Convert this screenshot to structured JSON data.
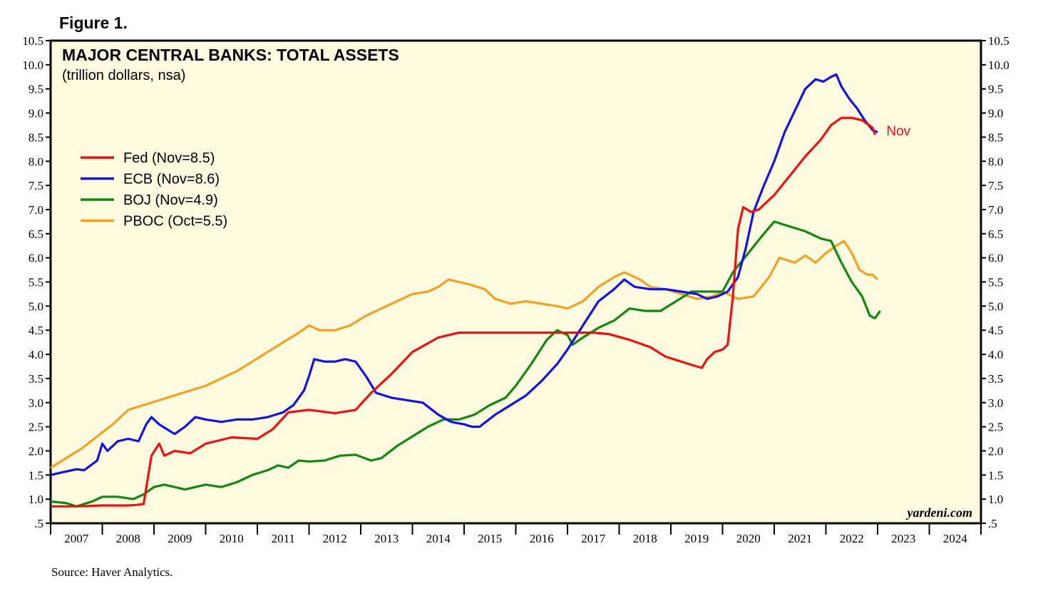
{
  "figure_label": "Figure 1.",
  "source": "Source: Haver Analytics.",
  "watermark": "yardeni.com",
  "colors": {
    "fed": "#ee1111",
    "ecb": "#1111ee",
    "boj": "#118811",
    "pboc": "#f5a020",
    "plot_bg": "#fefbe0"
  },
  "chart_data": {
    "type": "line",
    "title": "MAJOR CENTRAL BANKS: TOTAL ASSETS",
    "subtitle": "(trillion dollars, nsa)",
    "xlabel": "",
    "ylabel": "",
    "x_categories": [
      "2007",
      "2008",
      "2009",
      "2010",
      "2011",
      "2012",
      "2013",
      "2014",
      "2015",
      "2016",
      "2017",
      "2018",
      "2019",
      "2020",
      "2021",
      "2022",
      "2023",
      "2024"
    ],
    "xlim": [
      2007,
      2025
    ],
    "ylim": [
      0.5,
      10.5
    ],
    "y_ticks": [
      ".5",
      "1.0",
      "1.5",
      "2.0",
      "2.5",
      "3.0",
      "3.5",
      "4.0",
      "4.5",
      "5.0",
      "5.5",
      "6.0",
      "6.5",
      "7.0",
      "7.5",
      "8.0",
      "8.5",
      "9.0",
      "9.5",
      "10.0",
      "10.5"
    ],
    "grid": false,
    "legend_position": "left",
    "annotation": {
      "text": "Nov",
      "series": "Fed"
    },
    "series": [
      {
        "name": "Fed (Nov=8.5)",
        "key": "fed",
        "points": [
          [
            2007.0,
            0.85
          ],
          [
            2007.5,
            0.85
          ],
          [
            2008.0,
            0.87
          ],
          [
            2008.5,
            0.87
          ],
          [
            2008.65,
            0.88
          ],
          [
            2008.8,
            0.9
          ],
          [
            2008.95,
            1.9
          ],
          [
            2009.1,
            2.15
          ],
          [
            2009.2,
            1.9
          ],
          [
            2009.4,
            2.0
          ],
          [
            2009.7,
            1.95
          ],
          [
            2010.0,
            2.15
          ],
          [
            2010.5,
            2.28
          ],
          [
            2011.0,
            2.25
          ],
          [
            2011.3,
            2.45
          ],
          [
            2011.6,
            2.8
          ],
          [
            2012.0,
            2.85
          ],
          [
            2012.5,
            2.78
          ],
          [
            2012.9,
            2.85
          ],
          [
            2013.2,
            3.2
          ],
          [
            2013.6,
            3.6
          ],
          [
            2014.0,
            4.05
          ],
          [
            2014.5,
            4.35
          ],
          [
            2014.9,
            4.45
          ],
          [
            2015.5,
            4.45
          ],
          [
            2016.0,
            4.45
          ],
          [
            2016.5,
            4.45
          ],
          [
            2017.0,
            4.45
          ],
          [
            2017.5,
            4.45
          ],
          [
            2017.8,
            4.42
          ],
          [
            2018.2,
            4.3
          ],
          [
            2018.6,
            4.15
          ],
          [
            2018.9,
            3.95
          ],
          [
            2019.2,
            3.85
          ],
          [
            2019.5,
            3.75
          ],
          [
            2019.6,
            3.72
          ],
          [
            2019.7,
            3.9
          ],
          [
            2019.85,
            4.05
          ],
          [
            2020.0,
            4.1
          ],
          [
            2020.1,
            4.2
          ],
          [
            2020.2,
            5.2
          ],
          [
            2020.3,
            6.6
          ],
          [
            2020.4,
            7.05
          ],
          [
            2020.55,
            6.95
          ],
          [
            2020.7,
            7.0
          ],
          [
            2021.0,
            7.3
          ],
          [
            2021.3,
            7.7
          ],
          [
            2021.6,
            8.1
          ],
          [
            2021.9,
            8.45
          ],
          [
            2022.1,
            8.75
          ],
          [
            2022.3,
            8.9
          ],
          [
            2022.5,
            8.9
          ],
          [
            2022.7,
            8.85
          ],
          [
            2022.9,
            8.7
          ],
          [
            2022.95,
            8.55
          ]
        ]
      },
      {
        "name": "ECB (Nov=8.6)",
        "key": "ecb",
        "points": [
          [
            2007.0,
            1.5
          ],
          [
            2007.2,
            1.55
          ],
          [
            2007.5,
            1.62
          ],
          [
            2007.65,
            1.6
          ],
          [
            2007.9,
            1.8
          ],
          [
            2008.0,
            2.15
          ],
          [
            2008.1,
            2.0
          ],
          [
            2008.3,
            2.2
          ],
          [
            2008.5,
            2.25
          ],
          [
            2008.7,
            2.2
          ],
          [
            2008.85,
            2.55
          ],
          [
            2008.95,
            2.7
          ],
          [
            2009.1,
            2.55
          ],
          [
            2009.25,
            2.45
          ],
          [
            2009.4,
            2.35
          ],
          [
            2009.6,
            2.5
          ],
          [
            2009.8,
            2.7
          ],
          [
            2010.0,
            2.65
          ],
          [
            2010.3,
            2.6
          ],
          [
            2010.6,
            2.65
          ],
          [
            2010.9,
            2.65
          ],
          [
            2011.2,
            2.7
          ],
          [
            2011.5,
            2.8
          ],
          [
            2011.7,
            2.95
          ],
          [
            2011.9,
            3.25
          ],
          [
            2012.0,
            3.55
          ],
          [
            2012.1,
            3.9
          ],
          [
            2012.3,
            3.85
          ],
          [
            2012.5,
            3.85
          ],
          [
            2012.7,
            3.9
          ],
          [
            2012.9,
            3.85
          ],
          [
            2013.1,
            3.55
          ],
          [
            2013.3,
            3.2
          ],
          [
            2013.6,
            3.1
          ],
          [
            2013.9,
            3.05
          ],
          [
            2014.2,
            3.0
          ],
          [
            2014.5,
            2.75
          ],
          [
            2014.75,
            2.6
          ],
          [
            2015.0,
            2.55
          ],
          [
            2015.15,
            2.5
          ],
          [
            2015.3,
            2.5
          ],
          [
            2015.6,
            2.75
          ],
          [
            2015.9,
            2.95
          ],
          [
            2016.2,
            3.15
          ],
          [
            2016.5,
            3.45
          ],
          [
            2016.8,
            3.8
          ],
          [
            2017.0,
            4.1
          ],
          [
            2017.3,
            4.6
          ],
          [
            2017.6,
            5.1
          ],
          [
            2017.9,
            5.35
          ],
          [
            2018.1,
            5.55
          ],
          [
            2018.3,
            5.4
          ],
          [
            2018.6,
            5.35
          ],
          [
            2018.9,
            5.35
          ],
          [
            2019.2,
            5.3
          ],
          [
            2019.5,
            5.25
          ],
          [
            2019.7,
            5.15
          ],
          [
            2019.9,
            5.2
          ],
          [
            2020.1,
            5.3
          ],
          [
            2020.3,
            5.6
          ],
          [
            2020.45,
            6.2
          ],
          [
            2020.6,
            6.95
          ],
          [
            2020.8,
            7.5
          ],
          [
            2021.0,
            8.0
          ],
          [
            2021.2,
            8.6
          ],
          [
            2021.4,
            9.05
          ],
          [
            2021.6,
            9.5
          ],
          [
            2021.8,
            9.7
          ],
          [
            2021.95,
            9.65
          ],
          [
            2022.1,
            9.75
          ],
          [
            2022.2,
            9.8
          ],
          [
            2022.3,
            9.55
          ],
          [
            2022.45,
            9.3
          ],
          [
            2022.6,
            9.1
          ],
          [
            2022.75,
            8.85
          ],
          [
            2022.9,
            8.65
          ],
          [
            2023.0,
            8.6
          ]
        ]
      },
      {
        "name": "BOJ (Nov=4.9)",
        "key": "boj",
        "points": [
          [
            2007.0,
            0.95
          ],
          [
            2007.3,
            0.92
          ],
          [
            2007.5,
            0.85
          ],
          [
            2007.8,
            0.95
          ],
          [
            2008.0,
            1.05
          ],
          [
            2008.3,
            1.05
          ],
          [
            2008.6,
            1.0
          ],
          [
            2008.8,
            1.1
          ],
          [
            2009.0,
            1.25
          ],
          [
            2009.2,
            1.3
          ],
          [
            2009.4,
            1.25
          ],
          [
            2009.6,
            1.2
          ],
          [
            2009.8,
            1.25
          ],
          [
            2010.0,
            1.3
          ],
          [
            2010.3,
            1.25
          ],
          [
            2010.6,
            1.35
          ],
          [
            2010.9,
            1.5
          ],
          [
            2011.2,
            1.6
          ],
          [
            2011.4,
            1.7
          ],
          [
            2011.6,
            1.65
          ],
          [
            2011.8,
            1.8
          ],
          [
            2012.0,
            1.78
          ],
          [
            2012.3,
            1.8
          ],
          [
            2012.6,
            1.9
          ],
          [
            2012.9,
            1.92
          ],
          [
            2013.2,
            1.8
          ],
          [
            2013.4,
            1.85
          ],
          [
            2013.7,
            2.1
          ],
          [
            2014.0,
            2.3
          ],
          [
            2014.3,
            2.5
          ],
          [
            2014.6,
            2.65
          ],
          [
            2014.9,
            2.65
          ],
          [
            2015.2,
            2.75
          ],
          [
            2015.5,
            2.95
          ],
          [
            2015.8,
            3.1
          ],
          [
            2016.0,
            3.35
          ],
          [
            2016.3,
            3.8
          ],
          [
            2016.6,
            4.3
          ],
          [
            2016.8,
            4.5
          ],
          [
            2017.0,
            4.4
          ],
          [
            2017.1,
            4.2
          ],
          [
            2017.3,
            4.35
          ],
          [
            2017.6,
            4.55
          ],
          [
            2017.9,
            4.7
          ],
          [
            2018.2,
            4.95
          ],
          [
            2018.5,
            4.9
          ],
          [
            2018.8,
            4.9
          ],
          [
            2019.1,
            5.1
          ],
          [
            2019.4,
            5.3
          ],
          [
            2019.7,
            5.3
          ],
          [
            2020.0,
            5.3
          ],
          [
            2020.2,
            5.7
          ],
          [
            2020.5,
            6.1
          ],
          [
            2020.8,
            6.5
          ],
          [
            2021.0,
            6.75
          ],
          [
            2021.3,
            6.65
          ],
          [
            2021.6,
            6.55
          ],
          [
            2021.9,
            6.4
          ],
          [
            2022.1,
            6.35
          ],
          [
            2022.3,
            5.9
          ],
          [
            2022.5,
            5.5
          ],
          [
            2022.7,
            5.2
          ],
          [
            2022.85,
            4.8
          ],
          [
            2022.95,
            4.75
          ],
          [
            2023.05,
            4.9
          ]
        ]
      },
      {
        "name": "PBOC (Oct=5.5)",
        "key": "pboc",
        "points": [
          [
            2007.0,
            1.65
          ],
          [
            2007.3,
            1.85
          ],
          [
            2007.6,
            2.05
          ],
          [
            2007.9,
            2.3
          ],
          [
            2008.2,
            2.55
          ],
          [
            2008.5,
            2.85
          ],
          [
            2008.8,
            2.95
          ],
          [
            2009.1,
            3.05
          ],
          [
            2009.4,
            3.15
          ],
          [
            2009.7,
            3.25
          ],
          [
            2010.0,
            3.35
          ],
          [
            2010.3,
            3.5
          ],
          [
            2010.6,
            3.65
          ],
          [
            2010.9,
            3.85
          ],
          [
            2011.2,
            4.05
          ],
          [
            2011.5,
            4.25
          ],
          [
            2011.8,
            4.45
          ],
          [
            2012.0,
            4.6
          ],
          [
            2012.2,
            4.5
          ],
          [
            2012.5,
            4.5
          ],
          [
            2012.8,
            4.6
          ],
          [
            2013.1,
            4.8
          ],
          [
            2013.4,
            4.95
          ],
          [
            2013.7,
            5.1
          ],
          [
            2014.0,
            5.25
          ],
          [
            2014.3,
            5.3
          ],
          [
            2014.5,
            5.4
          ],
          [
            2014.7,
            5.55
          ],
          [
            2014.9,
            5.5
          ],
          [
            2015.1,
            5.45
          ],
          [
            2015.4,
            5.35
          ],
          [
            2015.6,
            5.15
          ],
          [
            2015.9,
            5.05
          ],
          [
            2016.2,
            5.1
          ],
          [
            2016.5,
            5.05
          ],
          [
            2016.8,
            5.0
          ],
          [
            2017.0,
            4.95
          ],
          [
            2017.3,
            5.1
          ],
          [
            2017.6,
            5.4
          ],
          [
            2017.9,
            5.6
          ],
          [
            2018.1,
            5.7
          ],
          [
            2018.4,
            5.55
          ],
          [
            2018.6,
            5.4
          ],
          [
            2018.9,
            5.35
          ],
          [
            2019.2,
            5.25
          ],
          [
            2019.5,
            5.15
          ],
          [
            2019.8,
            5.2
          ],
          [
            2020.0,
            5.3
          ],
          [
            2020.3,
            5.15
          ],
          [
            2020.6,
            5.2
          ],
          [
            2020.9,
            5.6
          ],
          [
            2021.1,
            6.0
          ],
          [
            2021.4,
            5.9
          ],
          [
            2021.6,
            6.05
          ],
          [
            2021.8,
            5.9
          ],
          [
            2022.0,
            6.1
          ],
          [
            2022.2,
            6.25
          ],
          [
            2022.35,
            6.35
          ],
          [
            2022.5,
            6.1
          ],
          [
            2022.65,
            5.75
          ],
          [
            2022.8,
            5.65
          ],
          [
            2022.9,
            5.65
          ],
          [
            2023.0,
            5.55
          ]
        ]
      }
    ]
  }
}
